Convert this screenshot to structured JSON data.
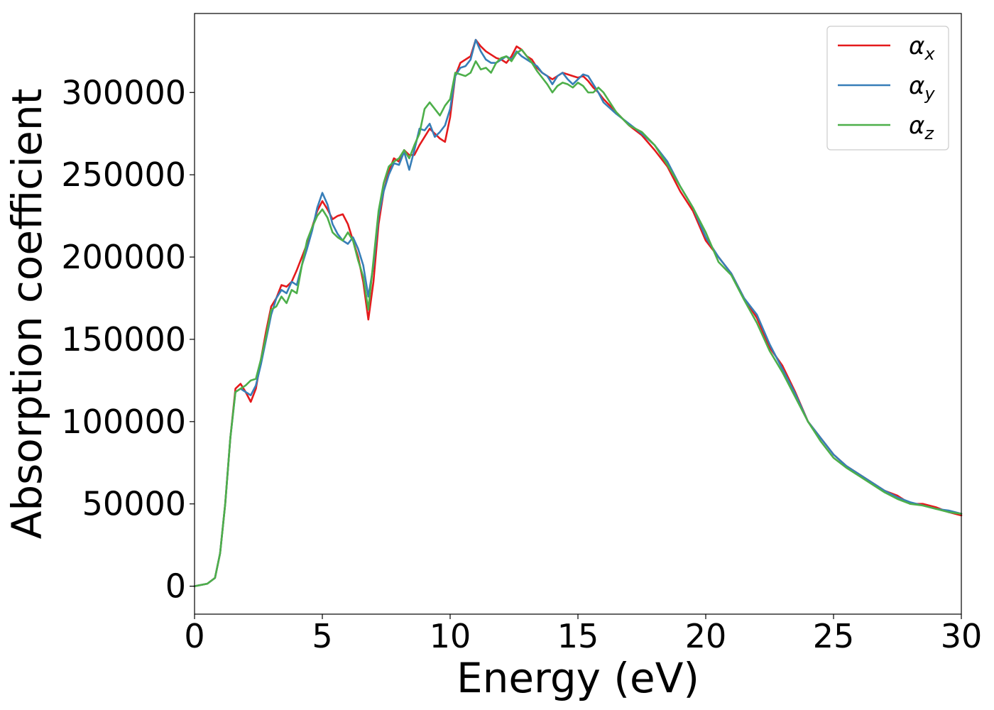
{
  "chart_data": {
    "type": "line",
    "title": "",
    "xlabel": "Energy (eV)",
    "ylabel": "Absorption coefficient",
    "xlim": [
      0,
      30
    ],
    "ylim": [
      -17000,
      348000
    ],
    "xticks": [
      0,
      5,
      10,
      15,
      20,
      25,
      30
    ],
    "xtick_labels": [
      "0",
      "5",
      "10",
      "15",
      "20",
      "25",
      "30"
    ],
    "yticks": [
      0,
      50000,
      100000,
      150000,
      200000,
      250000,
      300000
    ],
    "ytick_labels": [
      "0",
      "50000",
      "100000",
      "150000",
      "200000",
      "250000",
      "300000"
    ],
    "grid": false,
    "legend_position": "top-right",
    "series": [
      {
        "name": "αx",
        "symbol": "α",
        "subscript": "x",
        "color": "#e41a1c",
        "x": [
          0,
          0.5,
          0.8,
          1.0,
          1.2,
          1.4,
          1.6,
          1.8,
          2.0,
          2.2,
          2.4,
          2.6,
          2.8,
          3.0,
          3.2,
          3.4,
          3.6,
          3.8,
          4.0,
          4.2,
          4.4,
          4.6,
          4.8,
          5.0,
          5.2,
          5.4,
          5.6,
          5.8,
          6.0,
          6.2,
          6.4,
          6.6,
          6.8,
          7.0,
          7.2,
          7.4,
          7.6,
          7.8,
          8.0,
          8.2,
          8.4,
          8.6,
          8.8,
          9.0,
          9.2,
          9.4,
          9.6,
          9.8,
          10.0,
          10.2,
          10.4,
          10.6,
          10.8,
          11.0,
          11.2,
          11.4,
          11.6,
          11.8,
          12.0,
          12.2,
          12.4,
          12.6,
          12.8,
          13.0,
          13.2,
          13.4,
          13.6,
          13.8,
          14.0,
          14.2,
          14.4,
          14.6,
          14.8,
          15.0,
          15.2,
          15.4,
          15.6,
          15.8,
          16.0,
          16.5,
          17.0,
          17.5,
          18.0,
          18.5,
          19.0,
          19.5,
          20.0,
          20.5,
          21.0,
          21.5,
          22.0,
          22.5,
          23.0,
          23.5,
          24.0,
          24.5,
          25.0,
          25.5,
          26.0,
          26.5,
          27.0,
          27.5,
          28.0,
          28.5,
          29.0,
          29.5,
          30.0
        ],
        "y": [
          0,
          1500,
          5000,
          20000,
          50000,
          90000,
          120000,
          123000,
          118000,
          112000,
          120000,
          138000,
          155000,
          170000,
          175000,
          183000,
          182000,
          185000,
          192000,
          200000,
          208000,
          218000,
          228000,
          234000,
          229000,
          223000,
          225000,
          226000,
          220000,
          210000,
          200000,
          185000,
          162000,
          185000,
          220000,
          240000,
          252000,
          260000,
          258000,
          265000,
          262000,
          262000,
          268000,
          273000,
          278000,
          275000,
          272000,
          270000,
          285000,
          310000,
          318000,
          320000,
          322000,
          332000,
          328000,
          325000,
          323000,
          321000,
          320000,
          318000,
          322000,
          328000,
          326000,
          322000,
          320000,
          315000,
          312000,
          310000,
          308000,
          310000,
          312000,
          311000,
          310000,
          309000,
          310000,
          307000,
          303000,
          300000,
          296000,
          288000,
          280000,
          274000,
          265000,
          255000,
          240000,
          228000,
          210000,
          200000,
          190000,
          175000,
          163000,
          145000,
          134000,
          118000,
          100000,
          90000,
          80000,
          73000,
          68000,
          63000,
          58000,
          55000,
          50000,
          50000,
          48000,
          45000,
          43000
        ]
      },
      {
        "name": "αy",
        "symbol": "α",
        "subscript": "y",
        "color": "#377eb8",
        "x": [
          0,
          0.5,
          0.8,
          1.0,
          1.2,
          1.4,
          1.6,
          1.8,
          2.0,
          2.2,
          2.4,
          2.6,
          2.8,
          3.0,
          3.2,
          3.4,
          3.6,
          3.8,
          4.0,
          4.2,
          4.4,
          4.6,
          4.8,
          5.0,
          5.2,
          5.4,
          5.6,
          5.8,
          6.0,
          6.2,
          6.4,
          6.6,
          6.8,
          7.0,
          7.2,
          7.4,
          7.6,
          7.8,
          8.0,
          8.2,
          8.4,
          8.6,
          8.8,
          9.0,
          9.2,
          9.4,
          9.6,
          9.8,
          10.0,
          10.2,
          10.4,
          10.6,
          10.8,
          11.0,
          11.2,
          11.4,
          11.6,
          11.8,
          12.0,
          12.2,
          12.4,
          12.6,
          12.8,
          13.0,
          13.2,
          13.4,
          13.6,
          13.8,
          14.0,
          14.2,
          14.4,
          14.6,
          14.8,
          15.0,
          15.2,
          15.4,
          15.6,
          15.8,
          16.0,
          16.5,
          17.0,
          17.5,
          18.0,
          18.5,
          19.0,
          19.5,
          20.0,
          20.5,
          21.0,
          21.5,
          22.0,
          22.5,
          23.0,
          23.5,
          24.0,
          24.5,
          25.0,
          25.5,
          26.0,
          26.5,
          27.0,
          27.5,
          28.0,
          28.5,
          29.0,
          29.5,
          30.0
        ],
        "y": [
          0,
          1500,
          5000,
          20000,
          50000,
          90000,
          118000,
          120000,
          118000,
          116000,
          122000,
          135000,
          150000,
          165000,
          175000,
          180000,
          178000,
          185000,
          183000,
          195000,
          205000,
          216000,
          230000,
          239000,
          232000,
          220000,
          214000,
          210000,
          208000,
          212000,
          205000,
          195000,
          176000,
          195000,
          225000,
          240000,
          250000,
          257000,
          256000,
          264000,
          253000,
          265000,
          278000,
          277000,
          281000,
          273000,
          276000,
          280000,
          290000,
          310000,
          315000,
          316000,
          320000,
          332000,
          325000,
          320000,
          318000,
          318000,
          320000,
          322000,
          320000,
          325000,
          322000,
          320000,
          318000,
          316000,
          312000,
          310000,
          305000,
          310000,
          312000,
          308000,
          305000,
          308000,
          311000,
          310000,
          305000,
          300000,
          294000,
          287000,
          281000,
          275000,
          268000,
          258000,
          243000,
          230000,
          212000,
          200000,
          190000,
          175000,
          165000,
          147000,
          132000,
          117000,
          100000,
          90000,
          80000,
          73000,
          68000,
          63000,
          58000,
          54000,
          51000,
          49000,
          47000,
          46000,
          44000
        ]
      },
      {
        "name": "αz",
        "symbol": "α",
        "subscript": "z",
        "color": "#4daf4a",
        "x": [
          0,
          0.5,
          0.8,
          1.0,
          1.2,
          1.4,
          1.6,
          1.8,
          2.0,
          2.2,
          2.4,
          2.6,
          2.8,
          3.0,
          3.2,
          3.4,
          3.6,
          3.8,
          4.0,
          4.2,
          4.4,
          4.6,
          4.8,
          5.0,
          5.2,
          5.4,
          5.6,
          5.8,
          6.0,
          6.2,
          6.4,
          6.6,
          6.8,
          7.0,
          7.2,
          7.4,
          7.6,
          7.8,
          8.0,
          8.2,
          8.4,
          8.6,
          8.8,
          9.0,
          9.2,
          9.4,
          9.6,
          9.8,
          10.0,
          10.2,
          10.4,
          10.6,
          10.8,
          11.0,
          11.2,
          11.4,
          11.6,
          11.8,
          12.0,
          12.2,
          12.4,
          12.6,
          12.8,
          13.0,
          13.2,
          13.4,
          13.6,
          13.8,
          14.0,
          14.2,
          14.4,
          14.6,
          14.8,
          15.0,
          15.2,
          15.4,
          15.6,
          15.8,
          16.0,
          16.5,
          17.0,
          17.5,
          18.0,
          18.5,
          19.0,
          19.5,
          20.0,
          20.5,
          21.0,
          21.5,
          22.0,
          22.5,
          23.0,
          23.5,
          24.0,
          24.5,
          25.0,
          25.5,
          26.0,
          26.5,
          27.0,
          27.5,
          28.0,
          28.5,
          29.0,
          29.5,
          30.0
        ],
        "y": [
          0,
          1500,
          5000,
          20000,
          50000,
          90000,
          118000,
          120000,
          122000,
          125000,
          126000,
          138000,
          152000,
          168000,
          170000,
          176000,
          172000,
          180000,
          178000,
          195000,
          210000,
          218000,
          225000,
          229000,
          224000,
          215000,
          212000,
          210000,
          215000,
          210000,
          198000,
          188000,
          168000,
          198000,
          228000,
          245000,
          255000,
          258000,
          260000,
          265000,
          260000,
          268000,
          275000,
          290000,
          294000,
          290000,
          286000,
          292000,
          296000,
          312000,
          311000,
          310000,
          312000,
          319000,
          314000,
          315000,
          312000,
          318000,
          321000,
          322000,
          319000,
          324000,
          326000,
          322000,
          318000,
          313000,
          309000,
          305000,
          300000,
          304000,
          306000,
          305000,
          303000,
          306000,
          304000,
          300000,
          300000,
          303000,
          300000,
          288000,
          280000,
          276000,
          268000,
          256000,
          243000,
          230000,
          215000,
          197000,
          189000,
          174000,
          160000,
          143000,
          130000,
          115000,
          100000,
          88000,
          78000,
          72000,
          67000,
          62000,
          57000,
          53000,
          50000,
          49000,
          47000,
          45000,
          44000
        ]
      }
    ]
  }
}
